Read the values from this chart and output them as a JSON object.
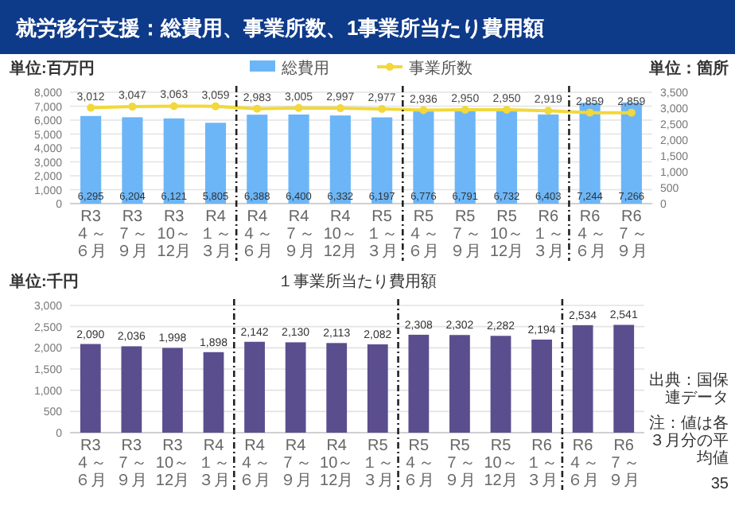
{
  "chart_data": [
    {
      "type": "bar",
      "title": "就労移行支援：総費用、事業所数、1事業所当たり費用額",
      "ylabel": "単位:百万円",
      "y2label": "単位：箇所",
      "categories": [
        "R3\n４～６月",
        "R3\n７～９月",
        "R3\n10～12月",
        "R4\n１～３月",
        "R4\n４～６月",
        "R4\n７～９月",
        "R4\n10～12月",
        "R5\n１～３月",
        "R5\n４～６月",
        "R5\n７～９月",
        "R5\n10～12月",
        "R6\n１～３月",
        "R6\n４～６月",
        "R6\n７～９月"
      ],
      "series": [
        {
          "name": "総費用",
          "type": "bar",
          "color": "#6cb6f7",
          "values": [
            6295,
            6204,
            6121,
            5805,
            6388,
            6400,
            6332,
            6197,
            6776,
            6791,
            6732,
            6403,
            7244,
            7266
          ],
          "value_labels": [
            "6,295",
            "6,204",
            "6,121",
            "5,805",
            "6,388",
            "6,400",
            "6,332",
            "6,197",
            "6,776",
            "6,791",
            "6,732",
            "6,403",
            "7,244",
            "7,266"
          ]
        },
        {
          "name": "事業所数",
          "type": "line",
          "axis": "y2",
          "color": "#f2d83a",
          "values": [
            3012,
            3047,
            3063,
            3059,
            2983,
            3005,
            2997,
            2977,
            2936,
            2950,
            2950,
            2919,
            2859,
            2859
          ],
          "value_labels": [
            "3,012",
            "3,047",
            "3,063",
            "3,059",
            "2,983",
            "3,005",
            "2,997",
            "2,977",
            "2,936",
            "2,950",
            "2,950",
            "2,919",
            "2,859",
            "2,859"
          ]
        }
      ],
      "ylim": [
        0,
        8000
      ],
      "yticks": [
        {
          "value": 0,
          "label": "0"
        },
        {
          "value": 1000,
          "label": "1,000"
        },
        {
          "value": 2000,
          "label": "2,000"
        },
        {
          "value": 3000,
          "label": "3,000"
        },
        {
          "value": 4000,
          "label": "4,000"
        },
        {
          "value": 5000,
          "label": "5,000"
        },
        {
          "value": 6000,
          "label": "6,000"
        },
        {
          "value": 7000,
          "label": "7,000"
        },
        {
          "value": 8000,
          "label": "8,000"
        }
      ],
      "y2lim": [
        0,
        3500
      ],
      "y2ticks": [
        {
          "value": 0,
          "label": "0"
        },
        500,
        {
          "value": 1000,
          "label": "1,000"
        },
        {
          "value": 1500,
          "label": "1,500"
        },
        {
          "value": 2000,
          "label": "2,000"
        },
        {
          "value": 2500,
          "label": "2,500"
        },
        {
          "value": 3000,
          "label": "3,000"
        },
        {
          "value": 3500,
          "label": "3,500"
        }
      ],
      "grid": "y",
      "legend": "top",
      "marker": "circle"
    },
    {
      "type": "bar",
      "title": "１事業所当たり費用額",
      "ylabel": "単位:千円",
      "categories": [
        "R3\n４～６月",
        "R3\n７～９月",
        "R3\n10～12月",
        "R4\n１～３月",
        "R4\n４～６月",
        "R4\n７～９月",
        "R4\n10～12月",
        "R5\n１～３月",
        "R5\n４～６月",
        "R5\n７～９月",
        "R5\n10～12月",
        "R6\n１～３月",
        "R6\n４～６月",
        "R6\n７～９月"
      ],
      "values": [
        2090,
        2036,
        1998,
        1898,
        2142,
        2130,
        2113,
        2082,
        2308,
        2302,
        2282,
        2194,
        2534,
        2541
      ],
      "color": "#5b4e8e",
      "value_labels": [
        "2,090",
        "2,036",
        "1,998",
        "1,898",
        "2,142",
        "2,130",
        "2,113",
        "2,082",
        "2,308",
        "2,302",
        "2,282",
        "2,194",
        "2,534",
        "2,541"
      ],
      "ylim": [
        0,
        3000
      ],
      "yticks": [
        {
          "value": 0,
          "label": "0"
        },
        500,
        {
          "value": 1000,
          "label": "1,000"
        },
        {
          "value": 1500,
          "label": "1,500"
        },
        {
          "value": 2000,
          "label": "2,000"
        },
        {
          "value": 2500,
          "label": "2,500"
        },
        {
          "value": 3000,
          "label": "3,000"
        }
      ],
      "grid": "y",
      "annotations": [
        "出典：国保連データ",
        "注：値は各３月分の平均値",
        "35"
      ]
    }
  ]
}
